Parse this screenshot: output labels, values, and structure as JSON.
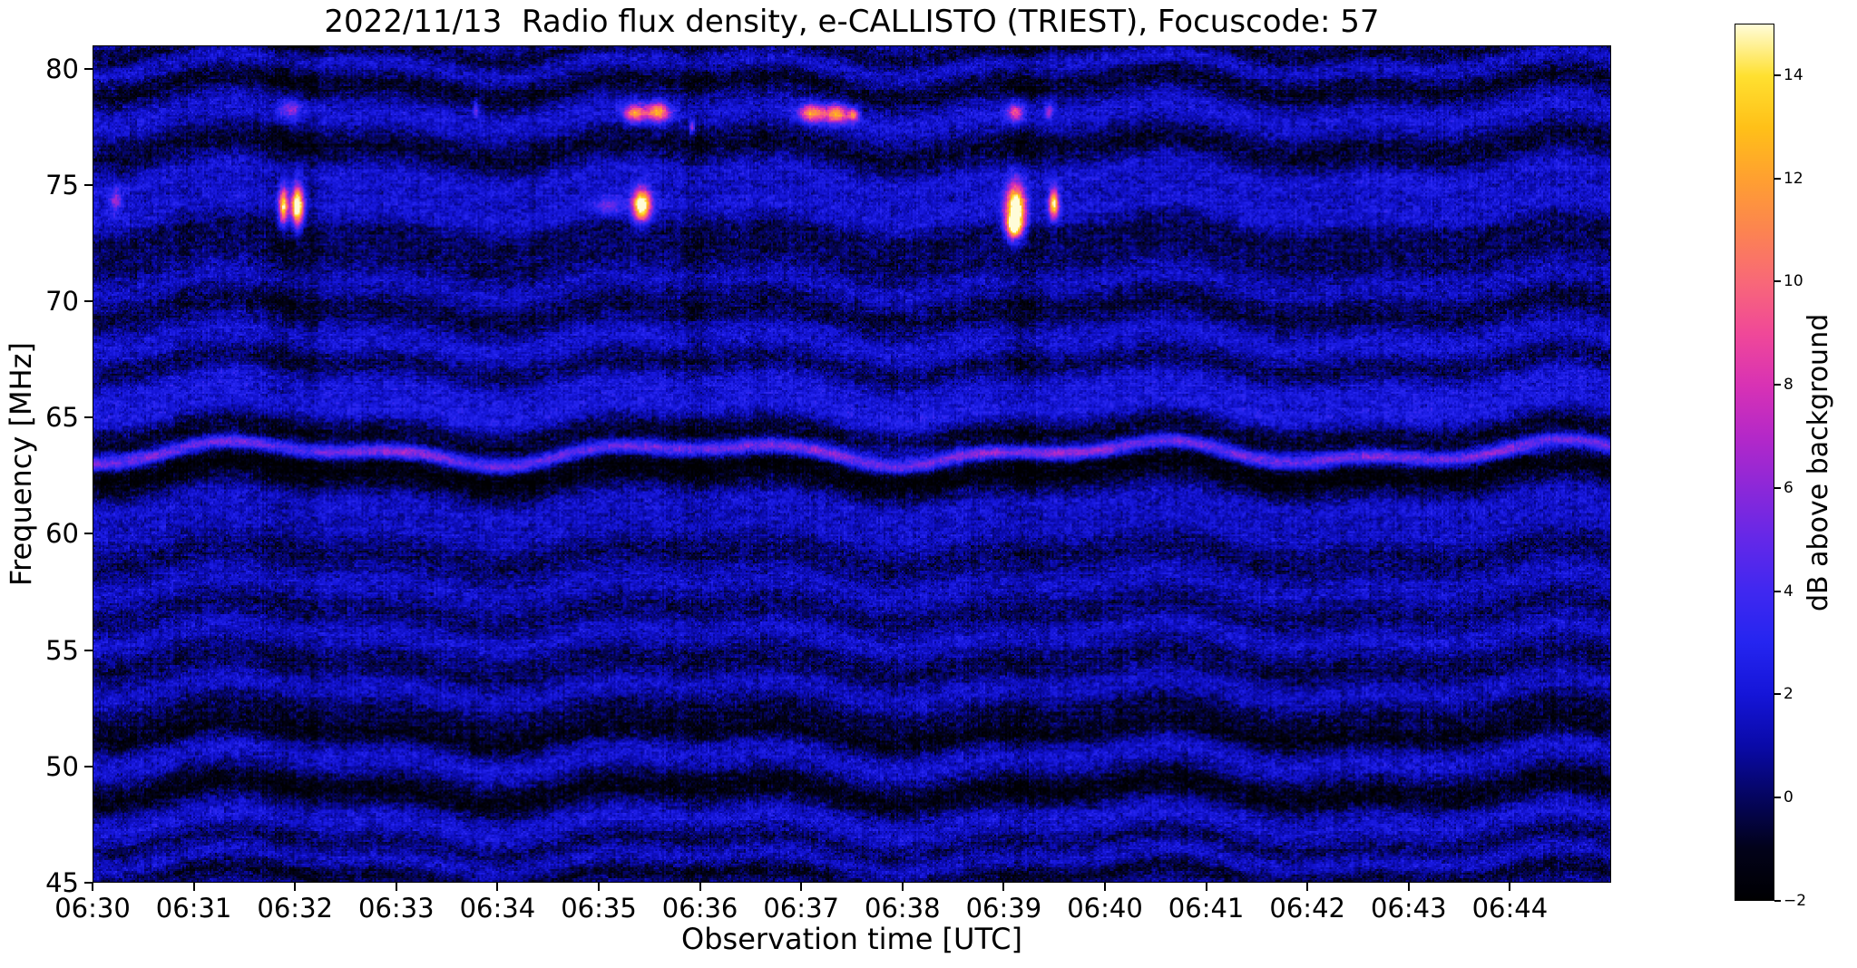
{
  "figure": {
    "title": "2022/11/13  Radio flux density, e-CALLISTO (TRIEST), Focuscode: 57",
    "date": "2022/11/13",
    "network": "e-CALLISTO",
    "station": "TRIEST",
    "focuscode": 57
  },
  "chart_data": {
    "type": "heatmap",
    "subtype": "radio-spectrogram",
    "title": "2022/11/13  Radio flux density, e-CALLISTO (TRIEST), Focuscode: 57",
    "xlabel": "Observation time [UTC]",
    "ylabel": "Frequency [MHz]",
    "x_range_minutes": [
      0,
      15
    ],
    "x_ticks": [
      {
        "minute": 0,
        "label": "06:30"
      },
      {
        "minute": 1,
        "label": "06:31"
      },
      {
        "minute": 2,
        "label": "06:32"
      },
      {
        "minute": 3,
        "label": "06:33"
      },
      {
        "minute": 4,
        "label": "06:34"
      },
      {
        "minute": 5,
        "label": "06:35"
      },
      {
        "minute": 6,
        "label": "06:36"
      },
      {
        "minute": 7,
        "label": "06:37"
      },
      {
        "minute": 8,
        "label": "06:38"
      },
      {
        "minute": 9,
        "label": "06:39"
      },
      {
        "minute": 10,
        "label": "06:40"
      },
      {
        "minute": 11,
        "label": "06:41"
      },
      {
        "minute": 12,
        "label": "06:42"
      },
      {
        "minute": 13,
        "label": "06:43"
      },
      {
        "minute": 14,
        "label": "06:44"
      }
    ],
    "y_range_mhz": [
      45,
      81
    ],
    "y_ticks": [
      {
        "value": 45,
        "label": "45"
      },
      {
        "value": 50,
        "label": "50"
      },
      {
        "value": 55,
        "label": "55"
      },
      {
        "value": 60,
        "label": "60"
      },
      {
        "value": 65,
        "label": "65"
      },
      {
        "value": 70,
        "label": "70"
      },
      {
        "value": 75,
        "label": "75"
      },
      {
        "value": 80,
        "label": "80"
      }
    ],
    "colorbar": {
      "label": "dB above background",
      "range": [
        -2,
        15
      ],
      "ticks": [
        {
          "value": -2,
          "label": "−2"
        },
        {
          "value": 0,
          "label": "0"
        },
        {
          "value": 2,
          "label": "2"
        },
        {
          "value": 4,
          "label": "4"
        },
        {
          "value": 6,
          "label": "6"
        },
        {
          "value": 8,
          "label": "8"
        },
        {
          "value": 10,
          "label": "10"
        },
        {
          "value": 12,
          "label": "12"
        },
        {
          "value": 14,
          "label": "14"
        }
      ],
      "colormap": [
        {
          "t": 0.0,
          "color": "#000002"
        },
        {
          "t": 0.059,
          "color": "#02021a"
        },
        {
          "t": 0.118,
          "color": "#050560"
        },
        {
          "t": 0.176,
          "color": "#0a0aa8"
        },
        {
          "t": 0.235,
          "color": "#1515d8"
        },
        {
          "t": 0.294,
          "color": "#2525f0"
        },
        {
          "t": 0.353,
          "color": "#4028f0"
        },
        {
          "t": 0.412,
          "color": "#6428e8"
        },
        {
          "t": 0.471,
          "color": "#8c28d8"
        },
        {
          "t": 0.529,
          "color": "#b428c8"
        },
        {
          "t": 0.588,
          "color": "#d832b4"
        },
        {
          "t": 0.647,
          "color": "#f04898"
        },
        {
          "t": 0.706,
          "color": "#f86878"
        },
        {
          "t": 0.765,
          "color": "#fc8450"
        },
        {
          "t": 0.824,
          "color": "#ffa030"
        },
        {
          "t": 0.882,
          "color": "#ffc018"
        },
        {
          "t": 0.941,
          "color": "#ffe030"
        },
        {
          "t": 1.0,
          "color": "#fffcd8"
        }
      ]
    },
    "spectrogram": {
      "base_level_db": 0.9,
      "noise_amplitude_db": 1.1,
      "block_noise_db": 1.3,
      "column_noise_db": 0.6,
      "row_noise_db": 0.4,
      "wobble": [
        {
          "amp": 0.38,
          "period": 4.3,
          "phase": 2.2
        },
        {
          "amp": 0.22,
          "period": 1.9,
          "phase": 0.7
        }
      ],
      "bands": [
        [
          63.45,
          0.22,
          5.2
        ],
        [
          62.75,
          0.45,
          -2.6
        ],
        [
          64.25,
          0.5,
          -2.0
        ],
        [
          65.3,
          0.4,
          1.2
        ],
        [
          66.3,
          0.35,
          0.9
        ],
        [
          67.3,
          0.4,
          -1.2
        ],
        [
          68.3,
          0.5,
          1.0
        ],
        [
          69.6,
          0.5,
          -1.3
        ],
        [
          70.8,
          0.4,
          0.8
        ],
        [
          72.0,
          0.6,
          -1.0
        ],
        [
          73.0,
          0.35,
          -0.8
        ],
        [
          74.0,
          0.5,
          1.0
        ],
        [
          75.4,
          0.4,
          1.1
        ],
        [
          76.6,
          0.5,
          -1.5
        ],
        [
          78.0,
          0.45,
          1.0
        ],
        [
          79.3,
          0.4,
          -1.6
        ],
        [
          80.2,
          0.3,
          0.9
        ],
        [
          80.9,
          0.3,
          -1.5
        ],
        [
          62.0,
          0.4,
          -0.8
        ],
        [
          61.3,
          0.4,
          0.9
        ],
        [
          60.2,
          0.4,
          0.7
        ],
        [
          59.0,
          0.5,
          -0.9
        ],
        [
          57.8,
          0.4,
          0.8
        ],
        [
          56.6,
          0.4,
          -0.8
        ],
        [
          55.6,
          0.35,
          0.9
        ],
        [
          54.4,
          0.5,
          -1.0
        ],
        [
          53.3,
          0.35,
          0.8
        ],
        [
          52.2,
          0.4,
          -1.2
        ],
        [
          51.35,
          0.35,
          -1.8
        ],
        [
          50.3,
          0.4,
          1.0
        ],
        [
          48.9,
          0.5,
          -2.2
        ],
        [
          47.6,
          0.45,
          1.1
        ],
        [
          46.6,
          0.35,
          -1.0
        ],
        [
          46.0,
          0.3,
          0.9
        ],
        [
          45.2,
          0.3,
          -1.5
        ],
        [
          65.0,
          1.5,
          0.4
        ]
      ],
      "dark_time_streaks": [
        [
          1.9,
          0.18,
          0.9
        ],
        [
          2.15,
          0.08,
          0.7
        ],
        [
          0.9,
          0.05,
          0.4
        ],
        [
          5.95,
          0.12,
          0.8
        ],
        [
          6.6,
          0.05,
          0.5
        ],
        [
          9.2,
          0.15,
          0.9
        ],
        [
          12.4,
          0.04,
          0.5
        ],
        [
          4.35,
          0.04,
          0.4
        ],
        [
          10.4,
          0.05,
          0.4
        ]
      ],
      "bursts": [
        [
          0.22,
          74.35,
          0.06,
          0.45,
          5
        ],
        [
          0.3,
          63.4,
          0.4,
          0.22,
          1.2
        ],
        [
          1.88,
          74.1,
          0.05,
          0.8,
          14
        ],
        [
          2.02,
          74.1,
          0.06,
          0.85,
          17
        ],
        [
          1.95,
          78.3,
          0.12,
          0.5,
          4.5
        ],
        [
          3.1,
          63.5,
          0.5,
          0.25,
          1.3
        ],
        [
          3.78,
          78.3,
          0.03,
          0.35,
          5
        ],
        [
          5.1,
          74.1,
          0.15,
          0.4,
          3
        ],
        [
          5.42,
          74.15,
          0.09,
          0.7,
          16
        ],
        [
          5.35,
          78.1,
          0.1,
          0.4,
          10
        ],
        [
          5.58,
          78.15,
          0.12,
          0.4,
          11
        ],
        [
          5.92,
          77.5,
          0.03,
          0.3,
          6
        ],
        [
          7.1,
          78.1,
          0.12,
          0.4,
          10
        ],
        [
          7.35,
          78.1,
          0.12,
          0.4,
          11
        ],
        [
          7.52,
          78.05,
          0.05,
          0.3,
          8
        ],
        [
          7.7,
          63.55,
          1.2,
          0.28,
          1.8
        ],
        [
          9.12,
          74.0,
          0.1,
          1.1,
          17
        ],
        [
          9.1,
          73.2,
          0.08,
          0.45,
          10
        ],
        [
          9.5,
          74.2,
          0.05,
          0.6,
          13
        ],
        [
          9.12,
          78.15,
          0.08,
          0.45,
          8
        ],
        [
          9.45,
          78.2,
          0.04,
          0.35,
          5
        ],
        [
          9.7,
          63.5,
          0.6,
          0.25,
          1.5
        ],
        [
          12.0,
          63.45,
          0.8,
          0.22,
          1.0
        ],
        [
          14.3,
          63.5,
          0.7,
          0.25,
          1.6
        ]
      ]
    }
  }
}
